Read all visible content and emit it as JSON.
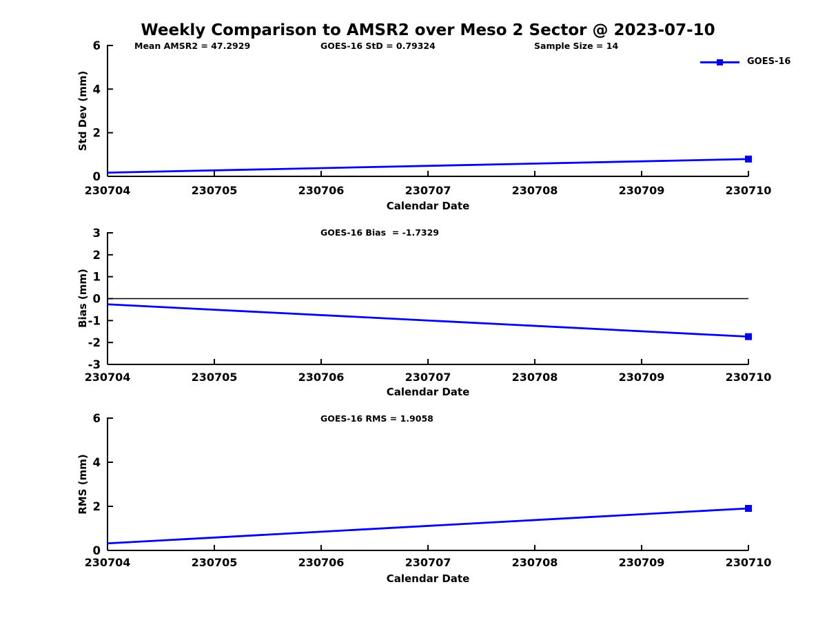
{
  "figure": {
    "title": "Weekly Comparison to AMSR2 over Meso 2 Sector @ 2023-07-10",
    "background_color": "#ffffff",
    "axis_color": "#000000"
  },
  "legend": {
    "label": "GOES-16",
    "line_color": "#0000ee",
    "marker": "filled-square",
    "position": "top-right-outside"
  },
  "chart_data": [
    {
      "type": "line",
      "title": "",
      "annotations": [
        {
          "text": "Mean AMSR2 = 47.2929"
        },
        {
          "text": "GOES-16 StD = 0.79324"
        },
        {
          "text": "Sample Size = 14"
        }
      ],
      "xlabel": "Calendar Date",
      "ylabel": "Std Dev (mm)",
      "xlim": [
        230704,
        230710
      ],
      "ylim": [
        0,
        6
      ],
      "xticks": [
        230704,
        230705,
        230706,
        230707,
        230708,
        230709,
        230710
      ],
      "yticks": [
        0,
        2,
        4,
        6
      ],
      "grid": false,
      "zero_line": false,
      "series": [
        {
          "name": "GOES-16",
          "color": "#0000ee",
          "x": [
            230704,
            230710
          ],
          "y": [
            0.17,
            0.79324
          ],
          "marker": "square",
          "marker_points": "last"
        }
      ]
    },
    {
      "type": "line",
      "title": "GOES-16 Bias  = -1.7329",
      "annotations": [],
      "xlabel": "Calendar Date",
      "ylabel": "Bias (mm)",
      "xlim": [
        230704,
        230710
      ],
      "ylim": [
        -3,
        3
      ],
      "xticks": [
        230704,
        230705,
        230706,
        230707,
        230708,
        230709,
        230710
      ],
      "yticks": [
        3,
        2,
        1,
        0,
        -1,
        -2,
        -3
      ],
      "grid": false,
      "zero_line": true,
      "series": [
        {
          "name": "GOES-16",
          "color": "#0000ee",
          "x": [
            230704,
            230710
          ],
          "y": [
            -0.26,
            -1.7329
          ],
          "marker": "square",
          "marker_points": "last"
        }
      ]
    },
    {
      "type": "line",
      "title": "GOES-16 RMS = 1.9058",
      "annotations": [],
      "xlabel": "Calendar Date",
      "ylabel": "RMS (mm)",
      "xlim": [
        230704,
        230710
      ],
      "ylim": [
        0,
        6
      ],
      "xticks": [
        230704,
        230705,
        230706,
        230707,
        230708,
        230709,
        230710
      ],
      "yticks": [
        0,
        2,
        4,
        6
      ],
      "grid": false,
      "zero_line": false,
      "series": [
        {
          "name": "GOES-16",
          "color": "#0000ee",
          "x": [
            230704,
            230710
          ],
          "y": [
            0.32,
            1.9058
          ],
          "marker": "square",
          "marker_points": "last"
        }
      ]
    }
  ]
}
